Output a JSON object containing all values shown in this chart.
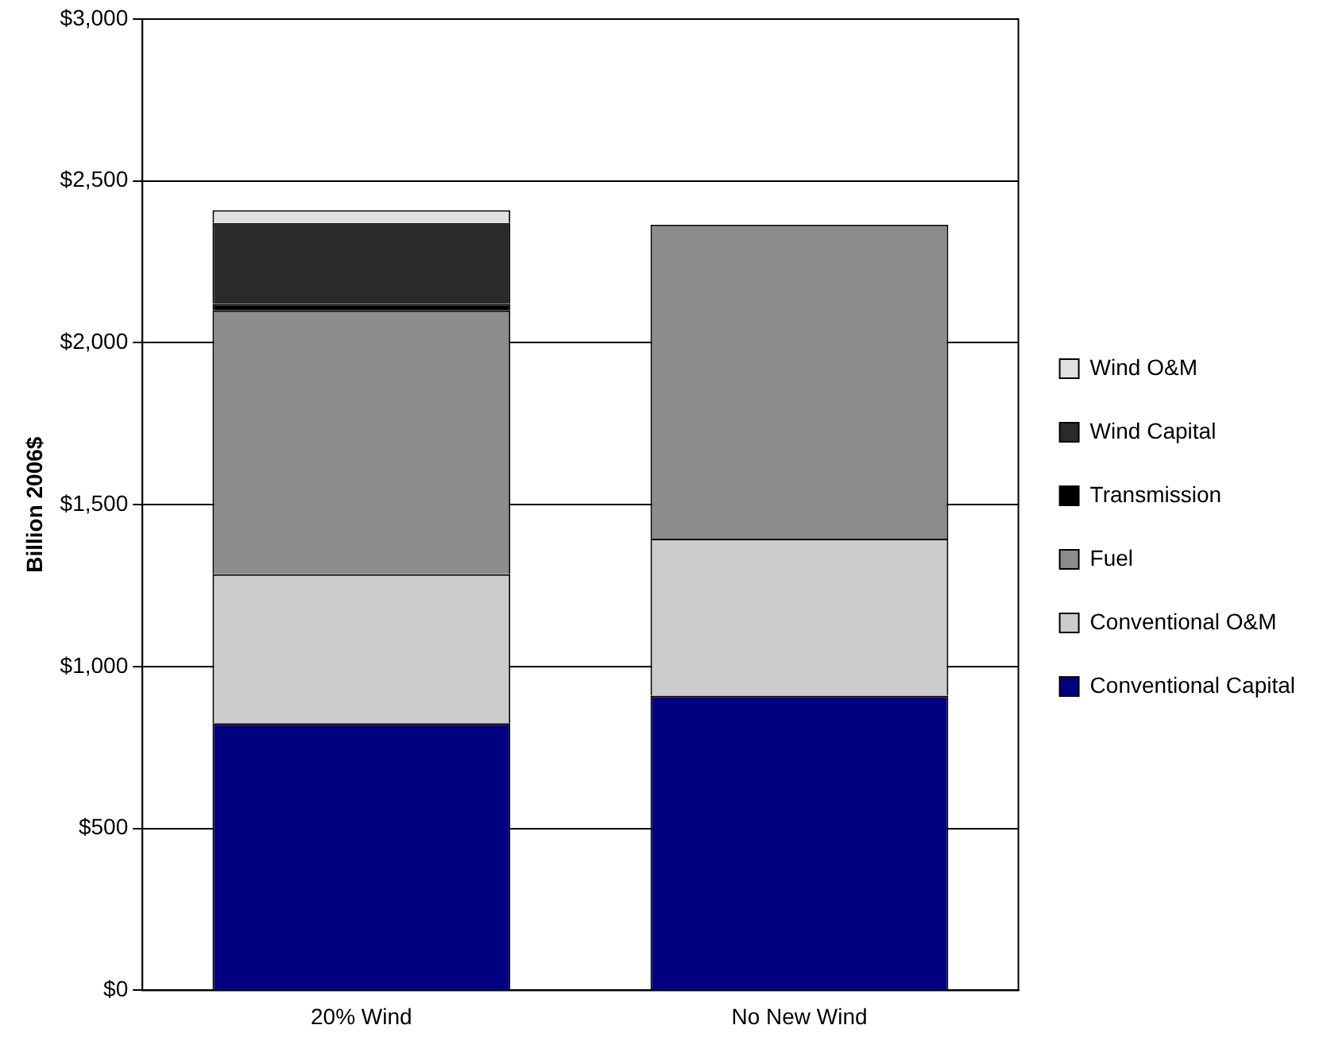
{
  "chart_data": {
    "type": "bar",
    "ylabel": "Billion 2006$",
    "categories": [
      "20% Wind",
      "No New Wind"
    ],
    "stacked": true,
    "series": [
      {
        "name": "Conventional Capital",
        "color": "#000080",
        "values": [
          825,
          910
        ]
      },
      {
        "name": "Conventional O&M",
        "color": "#cccccc",
        "values": [
          460,
          485
        ]
      },
      {
        "name": "Fuel",
        "color": "#8c8c8c",
        "values": [
          815,
          970
        ]
      },
      {
        "name": "Transmission",
        "color": "#000000",
        "values": [
          20,
          0
        ]
      },
      {
        "name": "Wind Capital",
        "color": "#2a2a2a",
        "values": [
          250,
          0
        ]
      },
      {
        "name": "Wind O&M",
        "color": "#e0e0e0",
        "values": [
          40,
          0
        ]
      }
    ],
    "ylim": [
      0,
      3000
    ],
    "yticks": [
      {
        "value": 0,
        "label": "$0"
      },
      {
        "value": 500,
        "label": "$500"
      },
      {
        "value": 1000,
        "label": "$1,000"
      },
      {
        "value": 1500,
        "label": "$1,500"
      },
      {
        "value": 2000,
        "label": "$2,000"
      },
      {
        "value": 2500,
        "label": "$2,500"
      },
      {
        "value": 3000,
        "label": "$3,000"
      }
    ],
    "grid": "y",
    "legend": "right"
  }
}
